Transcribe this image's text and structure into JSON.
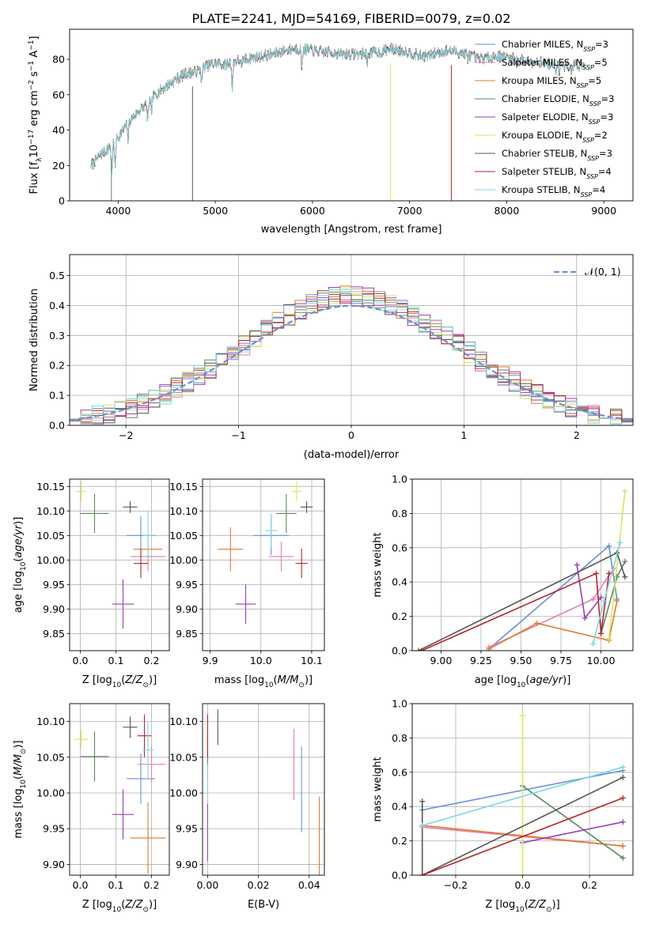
{
  "figure": {
    "title": "PLATE=2241, MJD=54169, FIBERID=0079, z=0.02",
    "colors": [
      "#6a8fd8",
      "#e87fa8",
      "#e07b2e",
      "#5b8a5b",
      "#9a3fb8",
      "#d6e85c",
      "#555555",
      "#b8232c",
      "#7dd8e0"
    ]
  },
  "chart_data": [
    {
      "id": "spectrum",
      "type": "line",
      "xlabel": "wavelength [Angstrom, rest frame]",
      "ylabel_parts": [
        "Flux [f",
        "λ",
        "10",
        "−17",
        " erg cm",
        "−2",
        " s",
        "−1",
        " A",
        "−1",
        "]"
      ],
      "xlim": [
        3500,
        9300
      ],
      "ylim": [
        0,
        97
      ],
      "xticks": [
        4000,
        5000,
        6000,
        7000,
        8000,
        9000
      ],
      "yticks": [
        0,
        20,
        40,
        60,
        80
      ],
      "legend_position": "upper right",
      "grid": false,
      "spikes": [
        {
          "series": 3,
          "x": 3930,
          "y": 0
        },
        {
          "series": 6,
          "x": 4765,
          "y": 0
        },
        {
          "series": 5,
          "x": 6805,
          "y": 0
        },
        {
          "series": 7,
          "x": 7430,
          "y": 0
        }
      ],
      "continuum": [
        [
          3720,
          20
        ],
        [
          3800,
          25
        ],
        [
          3900,
          30
        ],
        [
          4000,
          36
        ],
        [
          4100,
          44
        ],
        [
          4200,
          50
        ],
        [
          4300,
          55
        ],
        [
          4400,
          61
        ],
        [
          4500,
          65
        ],
        [
          4600,
          69
        ],
        [
          4700,
          72
        ],
        [
          4800,
          73
        ],
        [
          4900,
          76
        ],
        [
          5000,
          78
        ],
        [
          5100,
          77
        ],
        [
          5200,
          79
        ],
        [
          5300,
          80
        ],
        [
          5400,
          81
        ],
        [
          5500,
          82
        ],
        [
          5600,
          83
        ],
        [
          5700,
          85
        ],
        [
          5800,
          86
        ],
        [
          5900,
          86
        ],
        [
          6000,
          85
        ],
        [
          6100,
          84
        ],
        [
          6200,
          84
        ],
        [
          6300,
          83
        ],
        [
          6400,
          83
        ],
        [
          6500,
          83
        ],
        [
          6600,
          84
        ],
        [
          6700,
          84
        ],
        [
          6800,
          86
        ],
        [
          6900,
          85
        ],
        [
          7000,
          84
        ],
        [
          7100,
          82
        ],
        [
          7200,
          82
        ],
        [
          7300,
          84
        ],
        [
          7400,
          85
        ],
        [
          7500,
          84
        ],
        [
          7600,
          83
        ],
        [
          7700,
          80
        ],
        [
          7800,
          81
        ],
        [
          7900,
          82
        ],
        [
          8000,
          81
        ],
        [
          8100,
          80
        ],
        [
          8200,
          79
        ],
        [
          8300,
          79
        ],
        [
          8400,
          78
        ],
        [
          8500,
          77
        ],
        [
          8600,
          76
        ],
        [
          8700,
          77
        ],
        [
          8800,
          76
        ]
      ],
      "series": [
        {
          "name": "Chabrier MILES",
          "nssp": "3"
        },
        {
          "name": "Salpeter MILES",
          "nssp": "5"
        },
        {
          "name": "Kroupa MILES",
          "nssp": "5"
        },
        {
          "name": "Chabrier ELODIE",
          "nssp": "3"
        },
        {
          "name": "Salpeter ELODIE",
          "nssp": "3"
        },
        {
          "name": "Kroupa ELODIE",
          "nssp": "2"
        },
        {
          "name": "Chabrier STELIB",
          "nssp": "3"
        },
        {
          "name": "Salpeter STELIB",
          "nssp": "4"
        },
        {
          "name": "Kroupa STELIB",
          "nssp": "4"
        }
      ]
    },
    {
      "id": "residual-histogram",
      "type": "line",
      "xlabel": "(data-model)/error",
      "ylabel": "Normed distribution",
      "xlim": [
        -2.5,
        2.5
      ],
      "ylim": [
        0,
        0.57
      ],
      "xticks": [
        -2,
        -1,
        0,
        1,
        2
      ],
      "yticks": [
        0.0,
        0.1,
        0.2,
        0.3,
        0.4,
        0.5
      ],
      "grid": true,
      "legend_position": "upper right",
      "normal_label": "𝒩(0, 1)",
      "bin_width": 0.1
    },
    {
      "id": "age-vs-Z",
      "type": "scatter",
      "xlabel_parts": [
        "Z [log",
        "10",
        "(",
        "Z/Z",
        "⊙",
        ")]"
      ],
      "ylabel_parts": [
        "age  [log",
        "10",
        "(",
        "age/yr",
        ")]"
      ],
      "xlim": [
        -0.03,
        0.25
      ],
      "ylim": [
        9.815,
        10.165
      ],
      "xticks": [
        0.0,
        0.1,
        0.2
      ],
      "yticks": [
        9.85,
        9.9,
        9.95,
        10.0,
        10.05,
        10.1,
        10.15
      ],
      "grid": true,
      "points": [
        {
          "series": 0,
          "x": 0.17,
          "y": 10.05,
          "xerr": 0.04,
          "yerr": 0.04
        },
        {
          "series": 1,
          "x": 0.19,
          "y": 10.007,
          "xerr": 0.05,
          "yerr": 0.03
        },
        {
          "series": 2,
          "x": 0.19,
          "y": 10.022,
          "xerr": 0.04,
          "yerr": 0.03
        },
        {
          "series": 3,
          "x": 0.04,
          "y": 10.095,
          "xerr": 0.04,
          "yerr": 0.04
        },
        {
          "series": 4,
          "x": 0.12,
          "y": 9.91,
          "xerr": 0.03,
          "yerr": 0.05
        },
        {
          "series": 5,
          "x": 0.003,
          "y": 10.14,
          "xerr": 0.015,
          "yerr": 0.02
        },
        {
          "series": 6,
          "x": 0.14,
          "y": 10.108,
          "xerr": 0.02,
          "yerr": 0.012
        },
        {
          "series": 7,
          "x": 0.17,
          "y": 9.993,
          "xerr": 0.02,
          "yerr": 0.03
        },
        {
          "series": 8,
          "x": 0.19,
          "y": 10.05,
          "xerr": 0.015,
          "yerr": 0.05
        }
      ]
    },
    {
      "id": "age-vs-mass",
      "type": "scatter",
      "xlabel_parts": [
        "mass [log",
        "10",
        "(",
        "M/M",
        "⊙",
        ")]"
      ],
      "ylabel_parts": [],
      "xlim": [
        9.885,
        10.125
      ],
      "ylim": [
        9.815,
        10.165
      ],
      "xticks": [
        9.9,
        10.0,
        10.1
      ],
      "yticks": [
        9.85,
        9.9,
        9.95,
        10.0,
        10.05,
        10.1,
        10.15
      ],
      "grid": true,
      "points": [
        {
          "series": 0,
          "x": 10.02,
          "y": 10.05,
          "xerr": 0.035,
          "yerr": 0.04
        },
        {
          "series": 1,
          "x": 10.04,
          "y": 10.007,
          "xerr": 0.025,
          "yerr": 0.03
        },
        {
          "series": 2,
          "x": 9.94,
          "y": 10.022,
          "xerr": 0.025,
          "yerr": 0.045
        },
        {
          "series": 3,
          "x": 10.05,
          "y": 10.095,
          "xerr": 0.02,
          "yerr": 0.04
        },
        {
          "series": 4,
          "x": 9.97,
          "y": 9.91,
          "xerr": 0.02,
          "yerr": 0.04
        },
        {
          "series": 5,
          "x": 10.07,
          "y": 10.14,
          "xerr": 0.01,
          "yerr": 0.02
        },
        {
          "series": 6,
          "x": 10.09,
          "y": 10.108,
          "xerr": 0.012,
          "yerr": 0.012
        },
        {
          "series": 7,
          "x": 10.08,
          "y": 9.993,
          "xerr": 0.012,
          "yerr": 0.03
        },
        {
          "series": 8,
          "x": 10.02,
          "y": 10.06,
          "xerr": 0.012,
          "yerr": 0.035
        }
      ]
    },
    {
      "id": "mass-weight-vs-age",
      "type": "line",
      "xlabel_parts": [
        "age  [log",
        "10",
        "(",
        "age/yr",
        ")]"
      ],
      "ylabel": "mass weight",
      "xlim": [
        8.82,
        10.2
      ],
      "ylim": [
        0,
        1.0
      ],
      "xticks": [
        9.0,
        9.25,
        9.5,
        9.75,
        10.0
      ],
      "yticks": [
        0.0,
        0.2,
        0.4,
        0.6,
        0.8,
        1.0
      ],
      "grid": true,
      "series": [
        {
          "series": 0,
          "points": [
            [
              9.3,
              0.01
            ],
            [
              10.05,
              0.61
            ],
            [
              10.1,
              0.3
            ]
          ]
        },
        {
          "series": 1,
          "points": [
            [
              9.3,
              0.02
            ],
            [
              9.95,
              0.3
            ],
            [
              10.08,
              0.48
            ]
          ]
        },
        {
          "series": 2,
          "points": [
            [
              9.3,
              0.01
            ],
            [
              9.6,
              0.16
            ],
            [
              10.05,
              0.06
            ],
            [
              10.1,
              0.29
            ]
          ]
        },
        {
          "series": 3,
          "points": [
            [
              10.0,
              0.1
            ],
            [
              10.1,
              0.43
            ],
            [
              10.15,
              0.52
            ]
          ]
        },
        {
          "series": 4,
          "points": [
            [
              9.85,
              0.5
            ],
            [
              9.9,
              0.19
            ],
            [
              10.0,
              0.31
            ]
          ]
        },
        {
          "series": 5,
          "points": [
            [
              10.05,
              0.07
            ],
            [
              10.15,
              0.93
            ]
          ]
        },
        {
          "series": 6,
          "points": [
            [
              8.86,
              0.0
            ],
            [
              10.1,
              0.57
            ],
            [
              10.15,
              0.43
            ]
          ]
        },
        {
          "series": 7,
          "points": [
            [
              8.88,
              0.0
            ],
            [
              9.97,
              0.45
            ],
            [
              10.0,
              0.1
            ],
            [
              10.05,
              0.45
            ]
          ]
        },
        {
          "series": 8,
          "points": [
            [
              9.95,
              0.04
            ],
            [
              10.02,
              0.29
            ],
            [
              10.12,
              0.63
            ]
          ]
        }
      ]
    },
    {
      "id": "mass-vs-Z",
      "type": "scatter",
      "xlabel_parts": [
        "Z [log",
        "10",
        "(",
        "Z/Z",
        "⊙",
        ")]"
      ],
      "ylabel_parts": [
        "mass [log",
        "10",
        "(",
        "M/M",
        "⊙",
        ")]"
      ],
      "xlim": [
        -0.03,
        0.25
      ],
      "ylim": [
        9.885,
        10.125
      ],
      "xticks": [
        0.0,
        0.1,
        0.2
      ],
      "yticks": [
        9.9,
        9.95,
        10.0,
        10.05,
        10.1
      ],
      "grid": true,
      "points": [
        {
          "series": 0,
          "x": 0.17,
          "y": 10.02,
          "xerr": 0.04,
          "yerr": 0.035
        },
        {
          "series": 1,
          "x": 0.2,
          "y": 10.04,
          "xerr": 0.04,
          "yerr": 0.025
        },
        {
          "series": 2,
          "x": 0.19,
          "y": 9.937,
          "xerr": 0.05,
          "yerr": 0.05
        },
        {
          "series": 3,
          "x": 0.04,
          "y": 10.051,
          "xerr": 0.04,
          "yerr": 0.035
        },
        {
          "series": 4,
          "x": 0.12,
          "y": 9.97,
          "xerr": 0.03,
          "yerr": 0.035
        },
        {
          "series": 5,
          "x": 0.003,
          "y": 10.075,
          "xerr": 0.02,
          "yerr": 0.012
        },
        {
          "series": 6,
          "x": 0.14,
          "y": 10.092,
          "xerr": 0.02,
          "yerr": 0.015
        },
        {
          "series": 7,
          "x": 0.18,
          "y": 10.08,
          "xerr": 0.02,
          "yerr": 0.03
        },
        {
          "series": 8,
          "x": 0.19,
          "y": 10.06,
          "xerr": 0.015,
          "yerr": 0.04
        }
      ]
    },
    {
      "id": "mass-vs-ebv",
      "type": "scatter",
      "xlabel": "E(B-V)",
      "ylabel_parts": [],
      "xlim": [
        -0.002,
        0.046
      ],
      "ylim": [
        9.885,
        10.125
      ],
      "xticks": [
        0.0,
        0.02,
        0.04
      ],
      "yticks": [
        9.9,
        9.95,
        10.0,
        10.05,
        10.1
      ],
      "grid": true,
      "points": [
        {
          "series": 0,
          "x": 0.037,
          "y": 10.005,
          "xerr": 0,
          "yerr": 0.06
        },
        {
          "series": 1,
          "x": 0.034,
          "y": 10.04,
          "xerr": 0,
          "yerr": 0.05
        },
        {
          "series": 2,
          "x": 0.044,
          "y": 9.94,
          "xerr": 0,
          "yerr": 0.055
        },
        {
          "series": 3,
          "x": 0.0,
          "y": 10.05,
          "xerr": 0,
          "yerr": 0.03
        },
        {
          "series": 4,
          "x": 0.0,
          "y": 9.945,
          "xerr": 0,
          "yerr": 0.04
        },
        {
          "series": 5,
          "x": 0.0,
          "y": 10.075,
          "xerr": 0,
          "yerr": 0.015
        },
        {
          "series": 6,
          "x": 0.004,
          "y": 10.092,
          "xerr": 0,
          "yerr": 0.025
        },
        {
          "series": 7,
          "x": 0.0,
          "y": 10.08,
          "xerr": 0,
          "yerr": 0.03
        },
        {
          "series": 8,
          "x": 0.0,
          "y": 10.02,
          "xerr": 0,
          "yerr": 0.02
        }
      ]
    },
    {
      "id": "mass-weight-vs-Z",
      "type": "line",
      "xlabel_parts": [
        "Z [log",
        "10",
        "(",
        "Z/Z",
        "⊙",
        ")]"
      ],
      "ylabel": "mass weight",
      "xlim": [
        -0.33,
        0.33
      ],
      "ylim": [
        0,
        1.0
      ],
      "xticks": [
        -0.2,
        0.0,
        0.2
      ],
      "yticks": [
        0.0,
        0.2,
        0.4,
        0.6,
        0.8,
        1.0
      ],
      "grid": true,
      "series": [
        {
          "series": 0,
          "points": [
            [
              -0.3,
              0.38
            ],
            [
              0.3,
              0.61
            ]
          ]
        },
        {
          "series": 1,
          "points": [
            [
              -0.3,
              0.28
            ],
            [
              0.3,
              0.17
            ]
          ]
        },
        {
          "series": 2,
          "points": [
            [
              -0.3,
              0.29
            ],
            [
              0.3,
              0.17
            ]
          ]
        },
        {
          "series": 3,
          "points": [
            [
              0.0,
              0.52
            ],
            [
              0.3,
              0.1
            ]
          ]
        },
        {
          "series": 4,
          "points": [
            [
              0.0,
              0.19
            ],
            [
              0.3,
              0.31
            ]
          ]
        },
        {
          "series": 5,
          "points": [
            [
              0.0,
              0.0
            ],
            [
              0.0,
              0.93
            ]
          ]
        },
        {
          "series": 6,
          "points": [
            [
              -0.3,
              0.43
            ],
            [
              -0.3,
              0.0
            ],
            [
              0.3,
              0.57
            ]
          ]
        },
        {
          "series": 7,
          "points": [
            [
              -0.3,
              0.0
            ],
            [
              0.3,
              0.45
            ]
          ]
        },
        {
          "series": 8,
          "points": [
            [
              -0.3,
              0.29
            ],
            [
              0.3,
              0.63
            ]
          ]
        }
      ]
    }
  ]
}
